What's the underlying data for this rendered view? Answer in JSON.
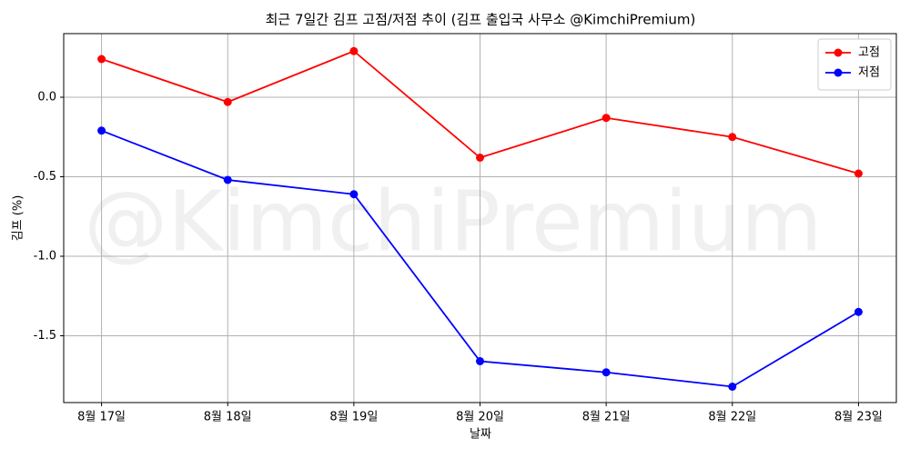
{
  "chart_data": {
    "type": "line",
    "title": "최근 7일간 김프 고점/저점 추이 (김프 출입국 사무소 @KimchiPremium)",
    "x_label": "날짜",
    "y_label": "김프 (%)",
    "watermark": "@KimchiPremium",
    "categories": [
      "8월 17일",
      "8월 18일",
      "8월 19일",
      "8월 20일",
      "8월 21일",
      "8월 22일",
      "8월 23일"
    ],
    "series": [
      {
        "name": "고점",
        "color": "#ff0000",
        "values": [
          0.24,
          -0.03,
          0.29,
          -0.38,
          -0.13,
          -0.25,
          -0.48
        ]
      },
      {
        "name": "저점",
        "color": "#0000ff",
        "values": [
          -0.21,
          -0.52,
          -0.61,
          -1.66,
          -1.73,
          -1.82,
          -1.35
        ]
      }
    ],
    "ylim": [
      -1.92,
      0.4
    ],
    "yticks": [
      {
        "value": 0,
        "label": "0.0"
      },
      -0.5,
      {
        "value": -1,
        "label": "-1.0"
      },
      -1.5
    ],
    "grid": true,
    "legend": "upper-right"
  }
}
